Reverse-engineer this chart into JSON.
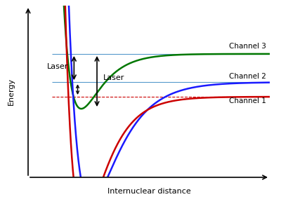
{
  "xlabel": "Internuclear distance",
  "ylabel": "Energy",
  "channel1_color": "#cc0000",
  "channel2_color": "#1a1aff",
  "channel3_color": "#007700",
  "hline_blue_color": "#5599cc",
  "hline_red_color": "#cc0000",
  "hline_green_color": "#5599cc",
  "channel1_label": "Channel 1",
  "channel2_label": "Channel 2",
  "channel3_label": "Channel 3",
  "laser1_label": "Laser",
  "laser2_label": "Laser",
  "bg_color": "#ffffff",
  "xlim": [
    0.0,
    1.0
  ],
  "ylim": [
    0.0,
    1.0
  ]
}
